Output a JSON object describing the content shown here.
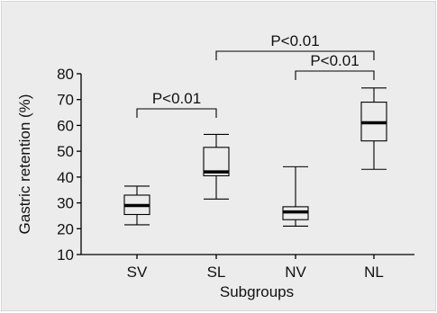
{
  "chart_data": {
    "type": "box",
    "xlabel": "Subgroups",
    "ylabel": "Gastric retention (%)",
    "ylim": [
      10,
      80
    ],
    "yticks": [
      10,
      20,
      30,
      40,
      50,
      60,
      70,
      80
    ],
    "grid": false,
    "categories": [
      "SV",
      "SL",
      "NV",
      "NL"
    ],
    "boxes": [
      {
        "category": "SV",
        "min": 21.5,
        "q1": 25.5,
        "median": 29.0,
        "q3": 33.0,
        "max": 36.5
      },
      {
        "category": "SL",
        "min": 31.5,
        "q1": 40.5,
        "median": 42.0,
        "q3": 51.5,
        "max": 56.5
      },
      {
        "category": "NV",
        "min": 21.0,
        "q1": 23.5,
        "median": 26.5,
        "q3": 28.5,
        "max": 44.0
      },
      {
        "category": "NL",
        "min": 43.0,
        "q1": 54.0,
        "median": 61.0,
        "q3": 69.0,
        "max": 74.5
      }
    ],
    "annotations": [
      {
        "from": "SV",
        "to": "SL",
        "label": "P<0.01",
        "level": 1
      },
      {
        "from": "NV",
        "to": "NL",
        "label": "P<0.01",
        "level": 1
      },
      {
        "from": "SL",
        "to": "NL",
        "label": "P<0.01",
        "level": 2
      }
    ]
  }
}
